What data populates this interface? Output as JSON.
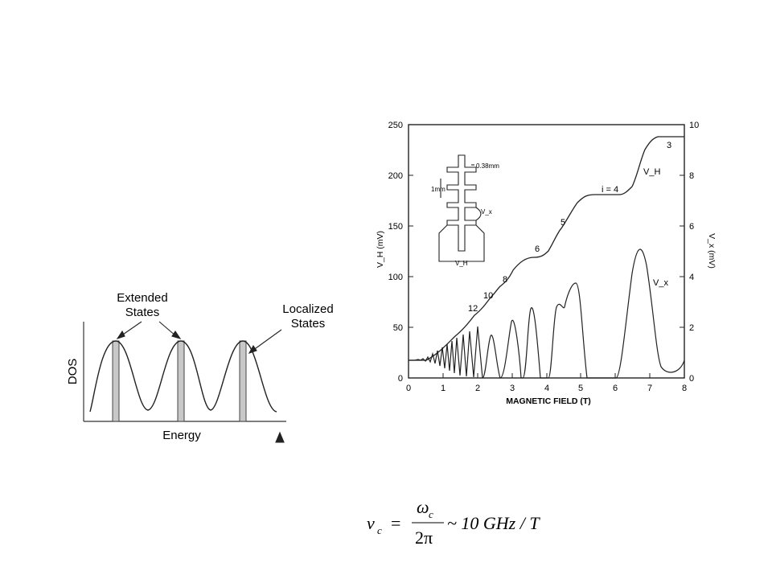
{
  "dos_figure": {
    "labels": {
      "extended_states_line1": "Extended",
      "extended_states_line2": "States",
      "localized_states_line1": "Localized",
      "localized_states_line2": "States",
      "y_axis": "DOS",
      "x_axis": "Energy"
    }
  },
  "qhe_figure": {
    "chart_data": {
      "type": "line",
      "xlabel": "MAGNETIC FIELD  (T)",
      "ylabel_left": "V_H (mV)",
      "ylabel_right": "V_x (mV)",
      "xlim": [
        0,
        8
      ],
      "ylim_left": [
        0,
        250
      ],
      "ylim_right": [
        0,
        10
      ],
      "x_ticks": [
        "0",
        "1",
        "2",
        "3",
        "4",
        "5",
        "6",
        "7",
        "8"
      ],
      "y_ticks_left": [
        "0",
        "50",
        "100",
        "150",
        "200",
        "250"
      ],
      "y_ticks_right": [
        "0",
        "2",
        "4",
        "6",
        "8",
        "10"
      ],
      "series": [
        {
          "name": "V_H",
          "axis": "left",
          "x": [
            0,
            0.3,
            0.6,
            1.0,
            1.4,
            1.8,
            2.2,
            2.6,
            3.0,
            3.4,
            3.8,
            4.3,
            4.7,
            5.1,
            5.4,
            5.8,
            6.2,
            6.5,
            6.8,
            7.0,
            7.2,
            7.5,
            7.8
          ],
          "y": [
            18,
            18,
            25,
            40,
            60,
            72,
            82,
            95,
            115,
            118,
            120,
            150,
            172,
            178,
            178,
            178,
            180,
            200,
            230,
            238,
            240,
            240,
            240
          ]
        },
        {
          "name": "V_x",
          "axis": "right",
          "x": [
            0.2,
            0.6,
            1.0,
            1.4,
            1.8,
            2.2,
            2.5,
            2.9,
            3.3,
            3.6,
            4.1,
            4.35,
            4.7,
            4.9,
            5.2,
            6.0,
            6.3,
            6.7,
            7.0,
            7.2,
            7.6
          ],
          "y": [
            0.8,
            1.0,
            1.2,
            1.4,
            1.7,
            2.1,
            2.4,
            0,
            2.9,
            0,
            0,
            2.9,
            3.2,
            3.8,
            0,
            0,
            2.5,
            5.2,
            2.0,
            0.4,
            0.5
          ]
        }
      ],
      "annotations": [
        "3",
        "V_H",
        "i = 4",
        "5",
        "6",
        "8",
        "10",
        "12",
        "V_x"
      ]
    },
    "inset": {
      "width_label": "0.38mm",
      "length_label": "1mm",
      "vx_label": "V_x",
      "vh_label": "V_H"
    }
  },
  "formula": {
    "lhs": "ν",
    "lhs_sub": "c",
    "eq": "=",
    "num": "ω",
    "num_sub": "c",
    "den": "2π",
    "rhs": "~ 10 GHz  / T"
  }
}
